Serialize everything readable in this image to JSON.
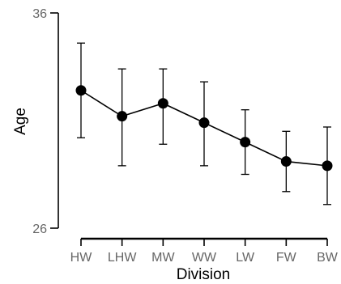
{
  "chart_data": {
    "type": "line",
    "xlabel": "Division",
    "ylabel": "Age",
    "ylim": [
      26,
      36
    ],
    "y_ticks": [
      "36",
      "26"
    ],
    "categories": [
      "HW",
      "LHW",
      "MW",
      "WW",
      "LW",
      "FW",
      "BW"
    ],
    "series": [
      {
        "values": [
          32.4,
          31.2,
          31.8,
          30.9,
          30.0,
          29.1,
          28.9
        ],
        "err_low": [
          30.2,
          28.9,
          29.9,
          28.9,
          28.5,
          27.7,
          27.1
        ],
        "err_high": [
          34.6,
          33.4,
          33.4,
          32.8,
          31.5,
          30.5,
          30.7
        ]
      }
    ],
    "grid": false,
    "legend": "none",
    "colors": {
      "line": "#000000",
      "marker": "#000000",
      "axis": "#000000",
      "tick_text": "#666666"
    }
  }
}
